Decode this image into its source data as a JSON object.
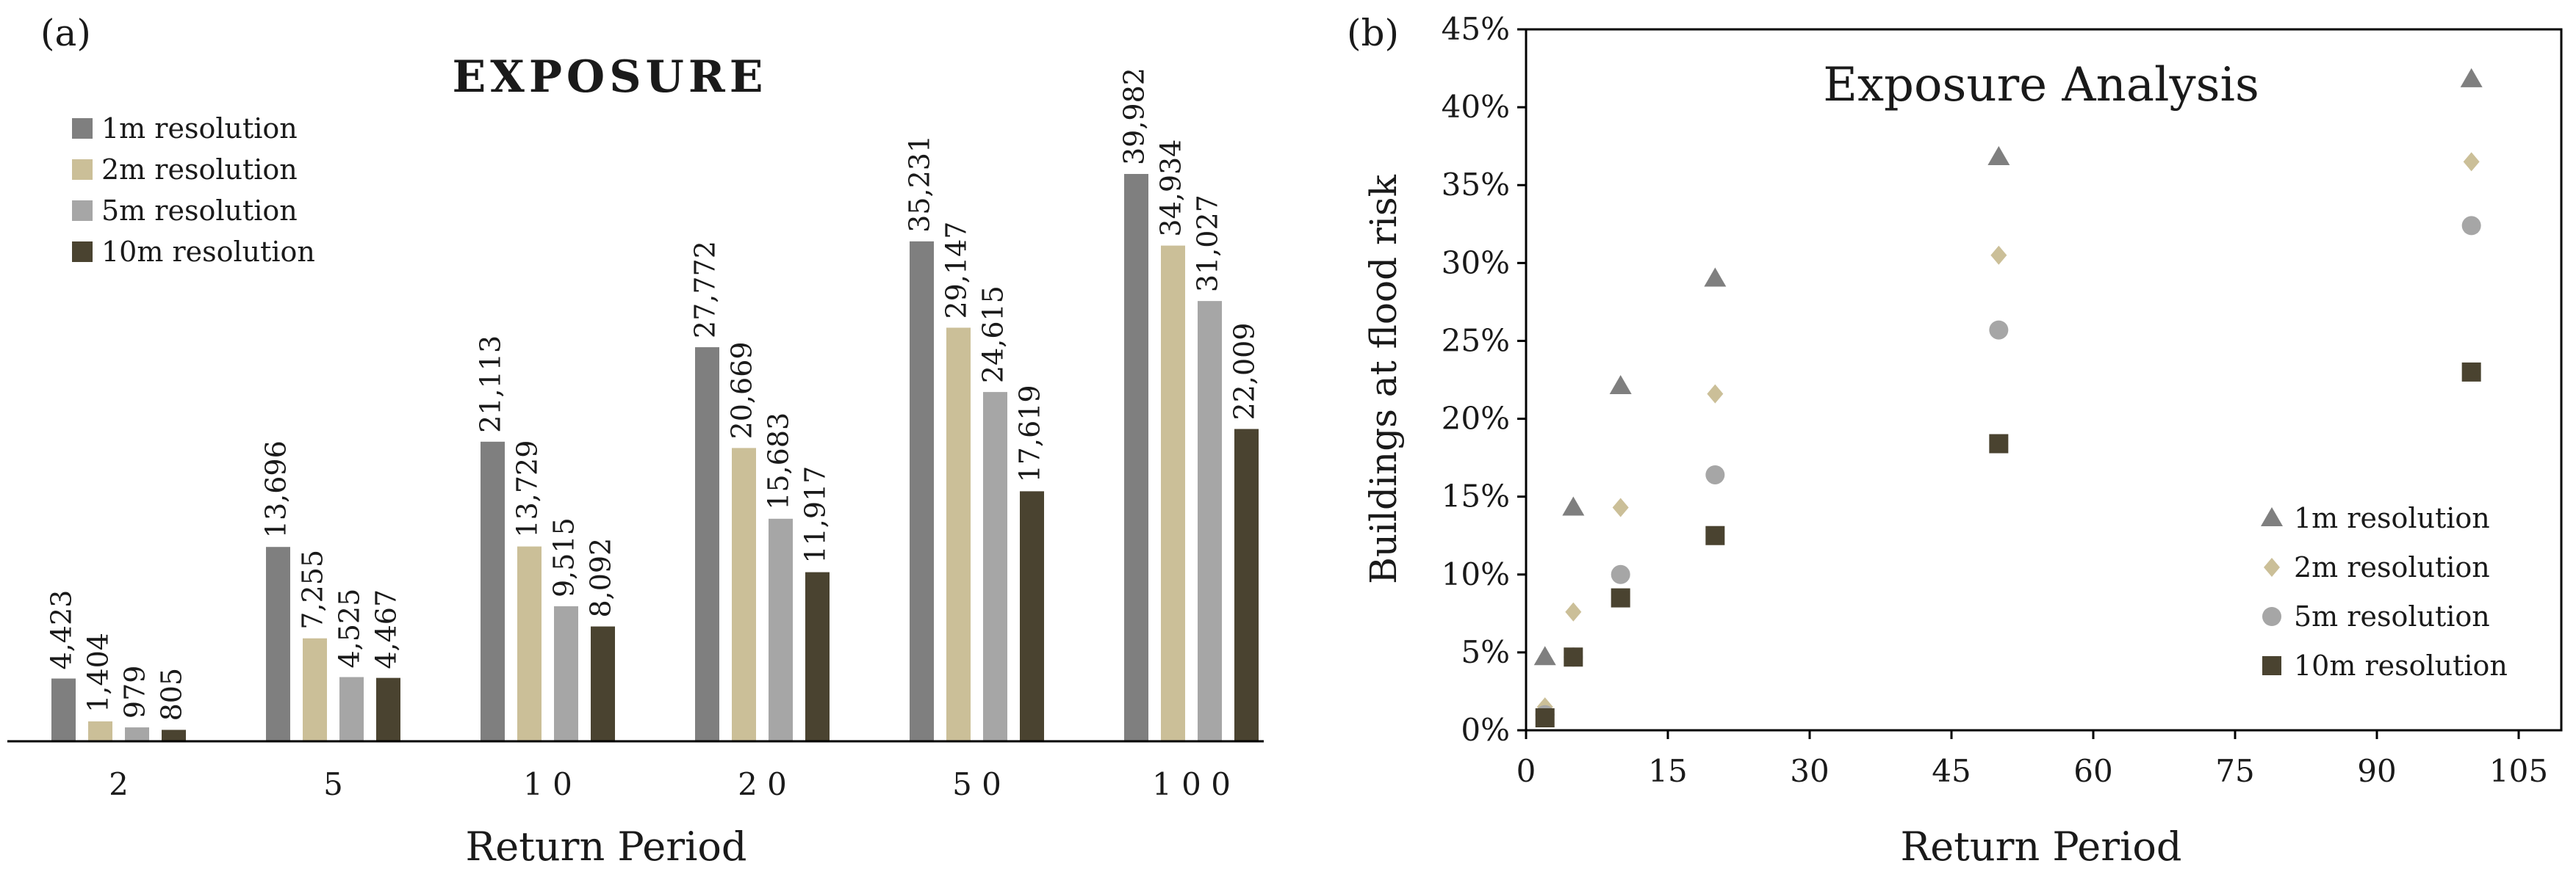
{
  "chart_data": [
    {
      "panel_label": "(a)",
      "type": "bar",
      "title": "EXPOSURE",
      "xlabel": "Return Period",
      "ylabel": "",
      "categories": [
        "2",
        "5",
        "10",
        "20",
        "50",
        "100"
      ],
      "category_labels": [
        "2",
        "5",
        "1 0",
        "2 0",
        "5 0",
        "1 0 0"
      ],
      "ylim": [
        0,
        45000
      ],
      "series": [
        {
          "name": "1m resolution",
          "color": "#7f7f7f",
          "values": [
            4423,
            13696,
            21113,
            27772,
            35231,
            39982
          ],
          "labels": [
            "4,423",
            "13,696",
            "21,113",
            "27,772",
            "35,231",
            "39,982"
          ]
        },
        {
          "name": "2m resolution",
          "color": "#cbbf98",
          "values": [
            1404,
            7255,
            13729,
            20669,
            29147,
            34934
          ],
          "labels": [
            "1,404",
            "7,255",
            "13,729",
            "20,669",
            "29,147",
            "34,934"
          ]
        },
        {
          "name": "5m resolution",
          "color": "#a6a6a6",
          "values": [
            979,
            4525,
            9515,
            15683,
            24615,
            31027
          ],
          "labels": [
            "979",
            "4,525",
            "9,515",
            "15,683",
            "24,615",
            "31,027"
          ]
        },
        {
          "name": "10m resolution",
          "color": "#4a4330",
          "values": [
            805,
            4467,
            8092,
            11917,
            17619,
            22009
          ],
          "labels": [
            "805",
            "4,467",
            "8,092",
            "11,917",
            "17,619",
            "22,009"
          ]
        }
      ],
      "legend_position": "top-left"
    },
    {
      "panel_label": "(b)",
      "type": "scatter",
      "title": "Exposure Analysis",
      "xlabel": "Return Period",
      "ylabel": "Buildings at flood risk",
      "xlim": [
        0,
        110
      ],
      "ylim": [
        0,
        45
      ],
      "xticks": [
        0,
        15,
        30,
        45,
        60,
        75,
        90,
        105
      ],
      "yticks": [
        0,
        5,
        10,
        15,
        20,
        25,
        30,
        35,
        40,
        45
      ],
      "ytick_labels": [
        "0%",
        "5%",
        "10%",
        "15%",
        "20%",
        "25%",
        "30%",
        "35%",
        "40%",
        "45%"
      ],
      "x": [
        2,
        5,
        10,
        20,
        50,
        100
      ],
      "series": [
        {
          "name": "1m resolution",
          "marker": "triangle",
          "color": "#7f7f7f",
          "values": [
            4.7,
            14.3,
            22.1,
            29.0,
            36.8,
            41.8
          ]
        },
        {
          "name": "2m resolution",
          "marker": "diamond",
          "color": "#cbbf98",
          "values": [
            1.5,
            7.6,
            14.3,
            21.6,
            30.5,
            36.5
          ]
        },
        {
          "name": "5m resolution",
          "marker": "circle",
          "color": "#a6a6a6",
          "values": [
            1.0,
            4.7,
            10.0,
            16.4,
            25.7,
            32.4
          ]
        },
        {
          "name": "10m resolution",
          "marker": "square",
          "color": "#4a4330",
          "values": [
            0.8,
            4.7,
            8.5,
            12.5,
            18.4,
            23.0
          ]
        }
      ],
      "legend_position": "bottom-right"
    }
  ]
}
